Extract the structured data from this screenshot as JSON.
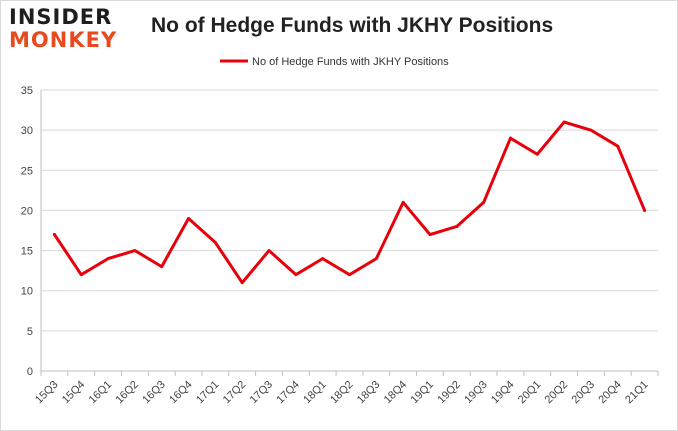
{
  "logo": {
    "line1": "INSIDER",
    "line2": "MONKEY"
  },
  "chart_data": {
    "type": "line",
    "title": "No of Hedge Funds with JKHY Positions",
    "xlabel": "",
    "ylabel": "",
    "categories": [
      "15Q3",
      "15Q4",
      "16Q1",
      "16Q2",
      "16Q3",
      "16Q4",
      "17Q1",
      "17Q2",
      "17Q3",
      "17Q4",
      "18Q1",
      "18Q2",
      "18Q3",
      "18Q4",
      "19Q1",
      "19Q2",
      "19Q3",
      "19Q4",
      "20Q1",
      "20Q2",
      "20Q3",
      "20Q4",
      "21Q1"
    ],
    "series": [
      {
        "name": "No of Hedge Funds with JKHY Positions",
        "values": [
          17,
          12,
          14,
          15,
          13,
          19,
          16,
          11,
          15,
          12,
          14,
          12,
          14,
          21,
          17,
          18,
          21,
          29,
          27,
          31,
          30,
          28,
          20
        ],
        "color": "#e8000b"
      }
    ],
    "ylim": [
      0,
      35
    ],
    "yticks": [
      0,
      5,
      10,
      15,
      20,
      25,
      30,
      35
    ],
    "grid": true,
    "legend": "top-center"
  }
}
